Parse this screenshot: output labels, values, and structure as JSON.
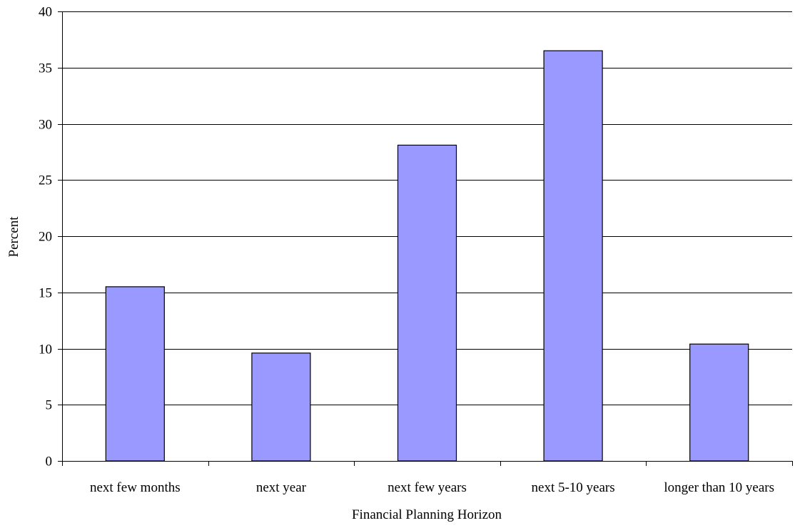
{
  "chart_data": {
    "type": "bar",
    "title": "",
    "xlabel": "Financial Planning Horizon",
    "ylabel": "Percent",
    "categories": [
      "next few months",
      "next year",
      "next few years",
      "next 5-10 years",
      "longer than 10 years"
    ],
    "values": [
      15.5,
      9.6,
      28.1,
      36.5,
      10.4
    ],
    "ylim": [
      0,
      40
    ],
    "yticks": [
      0,
      5,
      10,
      15,
      20,
      25,
      30,
      35,
      40
    ],
    "grid": true,
    "legend": "none",
    "colors": {
      "bar_fill": "#9999ff",
      "bar_stroke": "#000000",
      "gridline": "#000000",
      "background": "#ffffff"
    }
  }
}
